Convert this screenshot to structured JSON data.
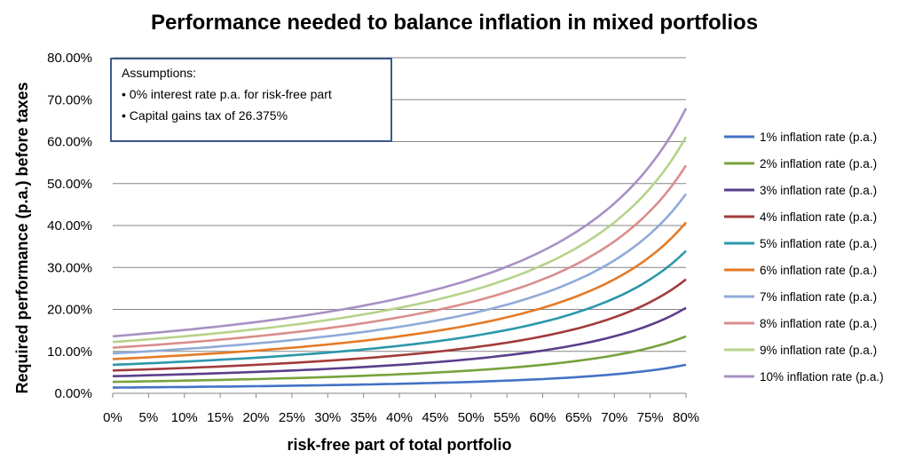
{
  "chart_data": {
    "type": "line",
    "title": "Performance needed to balance inflation in mixed portfolios",
    "xlabel": "risk-free part of total portfolio",
    "ylabel": "Required performance (p.a.) before taxes",
    "x": [
      0,
      5,
      10,
      15,
      20,
      25,
      30,
      35,
      40,
      45,
      50,
      55,
      60,
      65,
      70,
      75,
      80
    ],
    "x_tick_labels": [
      "0%",
      "5%",
      "10%",
      "15%",
      "20%",
      "25%",
      "30%",
      "35%",
      "40%",
      "45%",
      "50%",
      "55%",
      "60%",
      "65%",
      "70%",
      "75%",
      "80%"
    ],
    "y_tick_labels": [
      "0.00%",
      "10.00%",
      "20.00%",
      "30.00%",
      "40.00%",
      "50.00%",
      "60.00%",
      "70.00%",
      "80.00%"
    ],
    "xlim": [
      0,
      80
    ],
    "ylim": [
      0,
      80
    ],
    "grid": "horizontal",
    "legend_position": "right",
    "annotation": {
      "heading": "Assumptions:",
      "lines": [
        "• 0% interest rate p.a. for risk-free part",
        "• Capital gains tax of 26.375%"
      ]
    },
    "series": [
      {
        "name": "1% inflation rate (p.a.)",
        "color": "#4472C4",
        "inflation": 1
      },
      {
        "name": "2% inflation rate (p.a.)",
        "color": "#77A23C",
        "inflation": 2
      },
      {
        "name": "3% inflation rate (p.a.)",
        "color": "#5B3E8C",
        "inflation": 3
      },
      {
        "name": "4% inflation rate (p.a.)",
        "color": "#A23B3A",
        "inflation": 4
      },
      {
        "name": "5% inflation rate (p.a.)",
        "color": "#2C97AB",
        "inflation": 5
      },
      {
        "name": "6% inflation rate (p.a.)",
        "color": "#E57A25",
        "inflation": 6
      },
      {
        "name": "7% inflation rate (p.a.)",
        "color": "#8FAAD8",
        "inflation": 7
      },
      {
        "name": "8% inflation rate (p.a.)",
        "color": "#D98E8C",
        "inflation": 8
      },
      {
        "name": "9% inflation rate (p.a.)",
        "color": "#B5D38A",
        "inflation": 9
      },
      {
        "name": "10% inflation rate (p.a.)",
        "color": "#A890C4",
        "inflation": 10
      }
    ]
  }
}
